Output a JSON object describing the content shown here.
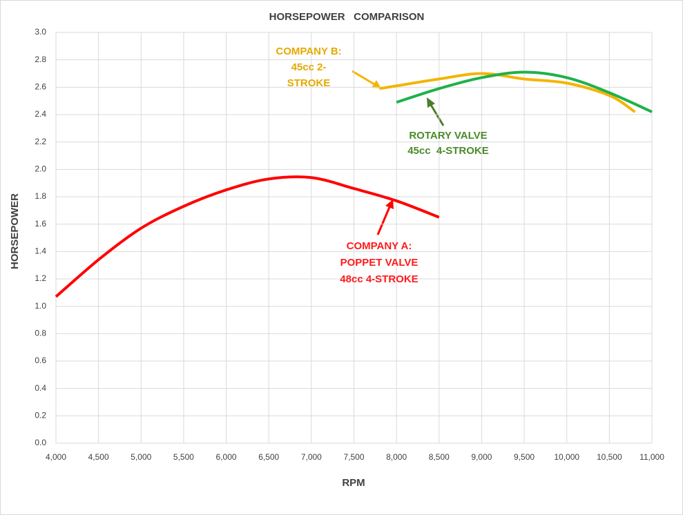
{
  "chart_data": {
    "type": "line",
    "title": "HORSEPOWER   COMPARISON",
    "x_label": "RPM",
    "y_label": "HORSEPOWER",
    "series": [
      {
        "name": "COMPANY A",
        "color": "#ff0000",
        "x": [
          4000,
          4500,
          5000,
          5500,
          6000,
          6500,
          7000,
          7500,
          8000,
          8500
        ],
        "values": [
          1.07,
          1.34,
          1.57,
          1.73,
          1.85,
          1.93,
          1.94,
          1.86,
          1.77,
          1.65
        ]
      },
      {
        "name": "COMPANY B",
        "color": "#f4b400",
        "x": [
          7800,
          8000,
          8500,
          9000,
          9500,
          10000,
          10500,
          10800
        ],
        "values": [
          2.59,
          2.61,
          2.66,
          2.7,
          2.66,
          2.63,
          2.54,
          2.42
        ]
      },
      {
        "name": "ROTARY VALVE",
        "color": "#1fb14a",
        "x": [
          8000,
          8500,
          9000,
          9500,
          10000,
          10500,
          11000
        ],
        "values": [
          2.49,
          2.59,
          2.67,
          2.71,
          2.67,
          2.56,
          2.42
        ]
      }
    ],
    "annotations": [
      {
        "lines": [
          "COMPANY A:",
          "POPPET VALVE",
          "48cc 4-STROKE"
        ],
        "color": "#ff1a1a"
      },
      {
        "lines": [
          "COMPANY B:",
          "45cc 2-",
          "STROKE"
        ],
        "color": "#e6a800"
      },
      {
        "lines": [
          "ROTARY VALVE",
          "45cc  4-STROKE"
        ],
        "color": "#4a8a2a"
      }
    ],
    "xlim": [
      4000,
      11000
    ],
    "xticks": [
      {
        "value": 4000,
        "label": "4,000"
      },
      {
        "value": 4500,
        "label": "4,500"
      },
      {
        "value": 5000,
        "label": "5,000"
      },
      {
        "value": 5500,
        "label": "5,500"
      },
      {
        "value": 6000,
        "label": "6,000"
      },
      {
        "value": 6500,
        "label": "6,500"
      },
      {
        "value": 7000,
        "label": "7,000"
      },
      {
        "value": 7500,
        "label": "7,500"
      },
      {
        "value": 8000,
        "label": "8,000"
      },
      {
        "value": 8500,
        "label": "8,500"
      },
      {
        "value": 9000,
        "label": "9,000"
      },
      {
        "value": 9500,
        "label": "9,500"
      },
      {
        "value": 10000,
        "label": "10,000"
      },
      {
        "value": 10500,
        "label": "10,500"
      },
      {
        "value": 11000,
        "label": "11,000"
      }
    ],
    "ylim": [
      0,
      3
    ],
    "yticks": [
      {
        "value": 0,
        "label": "0.0"
      },
      0.2,
      0.4,
      0.6,
      0.8,
      {
        "value": 1,
        "label": "1.0"
      },
      1.2,
      1.4,
      1.6,
      1.8,
      {
        "value": 2,
        "label": "2.0"
      },
      2.2,
      2.4,
      2.6,
      2.8,
      {
        "value": 3,
        "label": "3.0"
      }
    ],
    "grid": true
  }
}
